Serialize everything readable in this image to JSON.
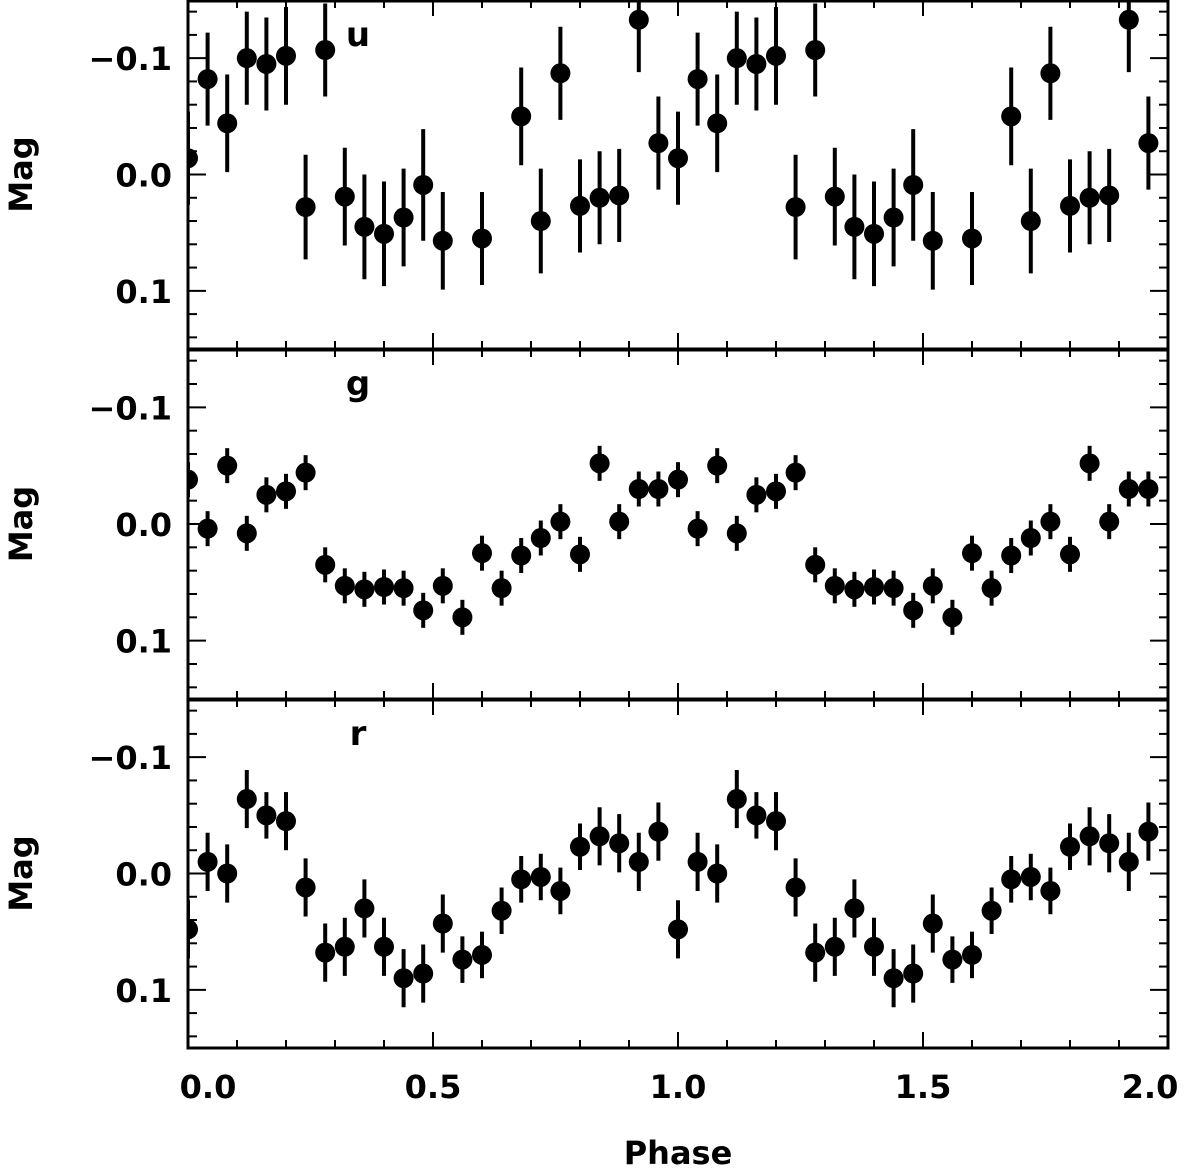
{
  "chart_data": {
    "type": "scatter",
    "xlabel": "Phase",
    "xlim": [
      0.0,
      2.0
    ],
    "xticks": [
      "0.0",
      "0.5",
      "1.0",
      "1.5",
      "2.0"
    ],
    "ylabel": "Mag",
    "ylim": [
      -0.15,
      0.15
    ],
    "y_inverted": true,
    "yticks": [
      -0.1,
      0.0,
      0.1
    ],
    "ytick_labels": [
      "−0.1",
      "0.0",
      "0.1"
    ],
    "panels": [
      {
        "band": "u",
        "x": [
          0.0,
          0.04,
          0.08,
          0.12,
          0.16,
          0.2,
          0.24,
          0.28,
          0.32,
          0.36,
          0.4,
          0.44,
          0.48,
          0.52,
          0.6,
          0.68,
          0.72,
          0.76,
          0.8,
          0.84,
          0.88,
          0.92,
          0.96
        ],
        "y": [
          -0.014,
          -0.082,
          -0.044,
          -0.1,
          -0.095,
          -0.102,
          0.028,
          -0.107,
          0.019,
          0.045,
          0.051,
          0.037,
          0.009,
          0.057,
          0.055,
          -0.05,
          0.04,
          -0.087,
          0.027,
          0.02,
          0.018,
          -0.133,
          -0.027
        ],
        "err": [
          0.04,
          0.04,
          0.042,
          0.04,
          0.04,
          0.042,
          0.045,
          0.04,
          0.042,
          0.045,
          0.045,
          0.042,
          0.048,
          0.042,
          0.04,
          0.042,
          0.045,
          0.04,
          0.04,
          0.04,
          0.04,
          0.045,
          0.04
        ]
      },
      {
        "band": "g",
        "x": [
          0.0,
          0.04,
          0.08,
          0.12,
          0.16,
          0.2,
          0.24,
          0.28,
          0.32,
          0.36,
          0.4,
          0.44,
          0.48,
          0.52,
          0.56,
          0.6,
          0.64,
          0.68,
          0.72,
          0.76,
          0.8,
          0.84,
          0.88,
          0.92,
          0.96
        ],
        "y": [
          -0.038,
          0.004,
          -0.05,
          0.008,
          -0.025,
          -0.028,
          -0.044,
          0.035,
          0.053,
          0.056,
          0.054,
          0.055,
          0.074,
          0.053,
          0.08,
          0.025,
          0.055,
          0.027,
          0.012,
          -0.002,
          0.026,
          -0.052,
          -0.002,
          -0.03,
          -0.03
        ],
        "err": [
          0.015,
          0.015,
          0.015,
          0.015,
          0.015,
          0.015,
          0.015,
          0.015,
          0.015,
          0.015,
          0.015,
          0.015,
          0.015,
          0.015,
          0.015,
          0.015,
          0.015,
          0.015,
          0.015,
          0.015,
          0.015,
          0.015,
          0.015,
          0.015,
          0.015
        ]
      },
      {
        "band": "r",
        "x": [
          0.0,
          0.04,
          0.08,
          0.12,
          0.16,
          0.2,
          0.24,
          0.28,
          0.32,
          0.36,
          0.4,
          0.44,
          0.48,
          0.52,
          0.56,
          0.6,
          0.64,
          0.68,
          0.72,
          0.76,
          0.8,
          0.84,
          0.88,
          0.92,
          0.96
        ],
        "y": [
          0.048,
          -0.01,
          0.0,
          -0.064,
          -0.05,
          -0.045,
          0.012,
          0.068,
          0.063,
          0.03,
          0.063,
          0.09,
          0.086,
          0.043,
          0.074,
          0.07,
          0.032,
          0.005,
          0.003,
          0.015,
          -0.023,
          -0.032,
          -0.026,
          -0.01,
          -0.036
        ],
        "err": [
          0.025,
          0.025,
          0.025,
          0.025,
          0.02,
          0.025,
          0.025,
          0.025,
          0.025,
          0.025,
          0.025,
          0.025,
          0.025,
          0.025,
          0.02,
          0.02,
          0.02,
          0.02,
          0.02,
          0.02,
          0.02,
          0.025,
          0.025,
          0.025,
          0.025
        ]
      }
    ],
    "repeat_period": 1.0,
    "marker": "filled-circle-with-errorbars",
    "colors": {
      "marker": "#000000",
      "axes": "#000000",
      "background": "#ffffff"
    }
  }
}
